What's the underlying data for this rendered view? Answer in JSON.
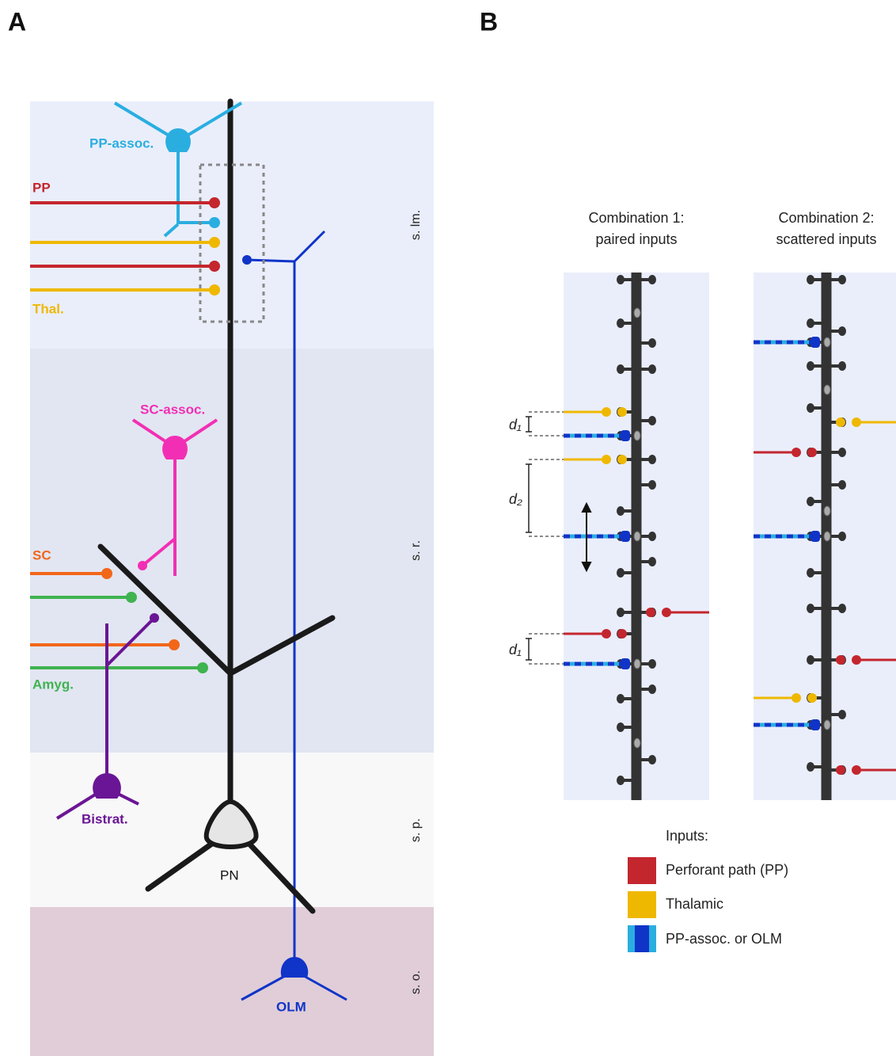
{
  "panel_a": {
    "label": "A",
    "cells": {
      "pp_assoc": "PP-assoc.",
      "pp": "PP",
      "thal": "Thal.",
      "sc_assoc": "SC-assoc.",
      "sc": "SC",
      "amyg": "Amyg.",
      "bistrat": "Bistrat.",
      "pn": "PN",
      "olm": "OLM"
    },
    "layers": [
      "s. lm.",
      "s. r.",
      "s. p.",
      "s. o."
    ]
  },
  "panel_b": {
    "label": "B",
    "combinations": [
      {
        "title": [
          "Combination 1:",
          "paired inputs"
        ]
      },
      {
        "title": [
          "Combination 2:",
          "scattered inputs"
        ]
      }
    ],
    "distances": [
      "d₁",
      "d₂",
      "d₁"
    ],
    "legend": {
      "title": "Inputs:",
      "items": [
        "Perforant path (PP)",
        "Thalamic",
        "PP-assoc. or OLM"
      ]
    }
  }
}
